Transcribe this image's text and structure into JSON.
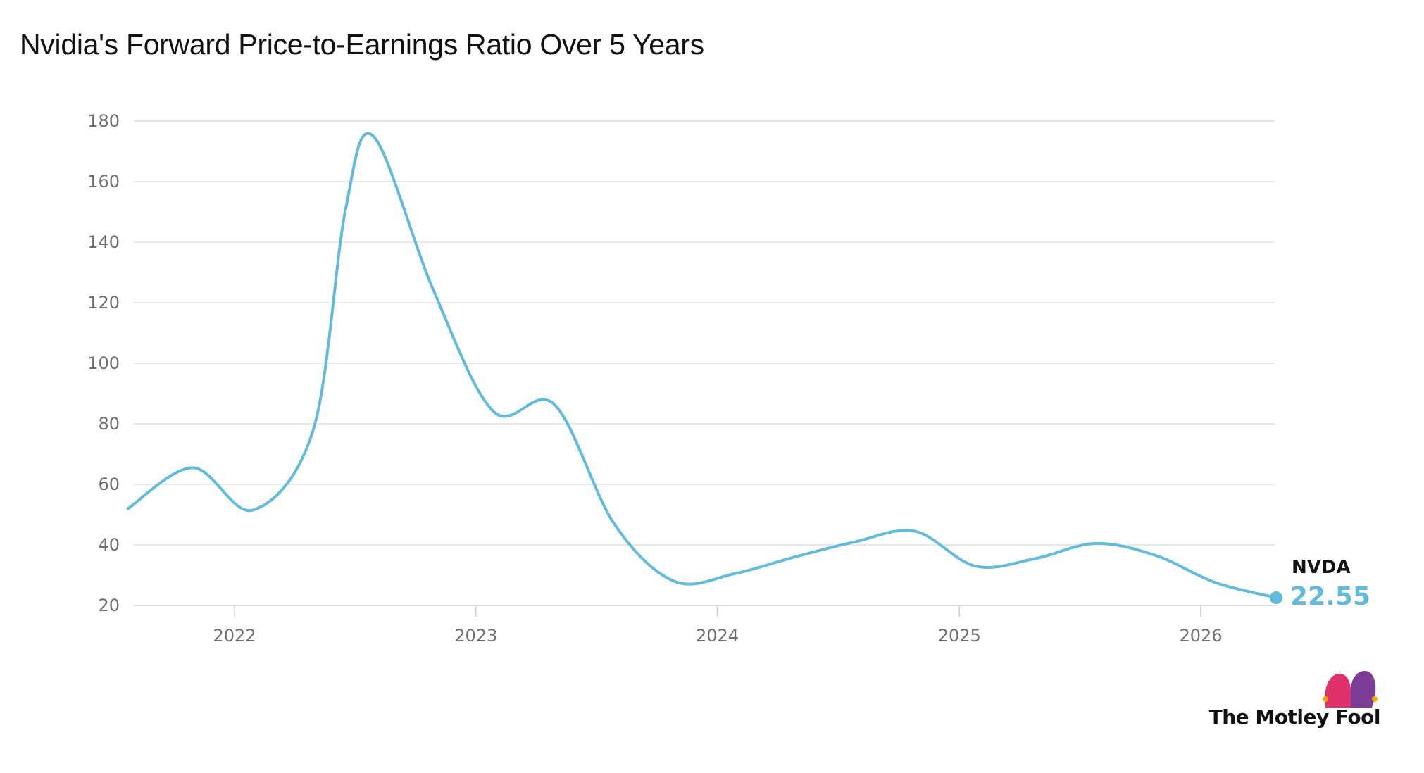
{
  "chart_data": {
    "type": "line",
    "title": "Nvidia's Forward Price-to-Earnings Ratio Over 5 Years",
    "xlabel": "",
    "ylabel": "",
    "ylim": [
      20,
      180
    ],
    "yticks": [
      20,
      40,
      60,
      80,
      100,
      120,
      140,
      160,
      180
    ],
    "xticks": [
      "2022",
      "2023",
      "2024",
      "2025",
      "2026"
    ],
    "grid": "horizontal",
    "series": [
      {
        "name": "NVDA",
        "color": "#62bbdd",
        "last_value_label": "22.55",
        "points": [
          {
            "x": "2021-07-24",
            "y": 52
          },
          {
            "x": "2021-10-30",
            "y": 65.5
          },
          {
            "x": "2022-01-29",
            "y": 51.5
          },
          {
            "x": "2022-04-30",
            "y": 78
          },
          {
            "x": "2022-06-18",
            "y": 151
          },
          {
            "x": "2022-07-30",
            "y": 175
          },
          {
            "x": "2022-10-29",
            "y": 124
          },
          {
            "x": "2023-01-28",
            "y": 84
          },
          {
            "x": "2023-04-29",
            "y": 86.5
          },
          {
            "x": "2023-07-29",
            "y": 47
          },
          {
            "x": "2023-10-28",
            "y": 28
          },
          {
            "x": "2024-01-27",
            "y": 30.5
          },
          {
            "x": "2024-04-27",
            "y": 36
          },
          {
            "x": "2024-07-27",
            "y": 41
          },
          {
            "x": "2024-10-26",
            "y": 44.5
          },
          {
            "x": "2025-01-25",
            "y": 33
          },
          {
            "x": "2025-04-26",
            "y": 35.5
          },
          {
            "x": "2025-07-26",
            "y": 40.5
          },
          {
            "x": "2025-10-25",
            "y": 36.5
          },
          {
            "x": "2026-01-24",
            "y": 27.5
          },
          {
            "x": "2026-04-25",
            "y": 22.55
          }
        ]
      }
    ]
  },
  "branding": {
    "text": "The Motley Fool",
    "icon": "jester-hat-icon",
    "colors": [
      "#e0306c",
      "#7d3c98",
      "#f2a900"
    ]
  }
}
